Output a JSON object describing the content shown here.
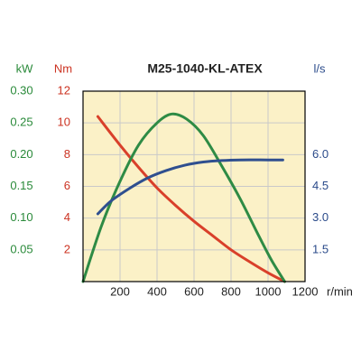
{
  "chart_data": {
    "type": "line",
    "title": "M25-1040-KL-ATEX",
    "x": {
      "unit": "r/min",
      "range": [
        0,
        1200
      ],
      "ticks": [
        "200",
        "400",
        "600",
        "800",
        "1000",
        "1200"
      ],
      "tick_values": [
        200,
        400,
        600,
        800,
        1000,
        1200
      ]
    },
    "axes": {
      "kw": {
        "unit": "kW",
        "side": "left-outer",
        "color": "#2a8a3a",
        "range": [
          0,
          0.3
        ],
        "ticks": [
          "0.05",
          "0.10",
          "0.15",
          "0.20",
          "0.25",
          "0.30"
        ],
        "tick_values": [
          0.05,
          0.1,
          0.15,
          0.2,
          0.25,
          0.3
        ]
      },
      "nm": {
        "unit": "Nm",
        "side": "left-inner",
        "color": "#cc3322",
        "range": [
          0,
          12
        ],
        "ticks": [
          "2",
          "4",
          "6",
          "8",
          "10",
          "12"
        ],
        "tick_values": [
          2,
          4,
          6,
          8,
          10,
          12
        ]
      },
      "ls": {
        "unit": "l/s",
        "side": "right",
        "color": "#2a4a8a",
        "range": [
          0,
          9
        ],
        "ticks": [
          "1.5",
          "3.0",
          "4.5",
          "6.0"
        ],
        "tick_values": [
          1.5,
          3.0,
          4.5,
          6.0
        ]
      }
    },
    "series": [
      {
        "axis": "nm",
        "color": "#d9402a",
        "points": [
          [
            80,
            10.4
          ],
          [
            200,
            8.6
          ],
          [
            300,
            7.2
          ],
          [
            400,
            5.9
          ],
          [
            500,
            4.8
          ],
          [
            600,
            3.8
          ],
          [
            700,
            2.9
          ],
          [
            800,
            2.0
          ],
          [
            900,
            1.25
          ],
          [
            1000,
            0.55
          ],
          [
            1090,
            0.0
          ]
        ]
      },
      {
        "axis": "kw",
        "color": "#2e8b45",
        "points": [
          [
            0,
            0.0
          ],
          [
            100,
            0.088
          ],
          [
            200,
            0.158
          ],
          [
            300,
            0.215
          ],
          [
            400,
            0.25
          ],
          [
            480,
            0.264
          ],
          [
            560,
            0.256
          ],
          [
            650,
            0.23
          ],
          [
            750,
            0.182
          ],
          [
            850,
            0.13
          ],
          [
            950,
            0.072
          ],
          [
            1020,
            0.033
          ],
          [
            1090,
            0.0
          ]
        ]
      },
      {
        "axis": "ls",
        "color": "#2f4f8f",
        "points": [
          [
            80,
            3.2
          ],
          [
            150,
            3.8
          ],
          [
            250,
            4.4
          ],
          [
            350,
            4.9
          ],
          [
            450,
            5.25
          ],
          [
            550,
            5.5
          ],
          [
            650,
            5.65
          ],
          [
            750,
            5.72
          ],
          [
            850,
            5.75
          ],
          [
            1000,
            5.75
          ],
          [
            1080,
            5.75
          ]
        ]
      }
    ],
    "grid": true,
    "plot_background": "#fbf1c7",
    "grid_color": "#c9c9c9"
  }
}
